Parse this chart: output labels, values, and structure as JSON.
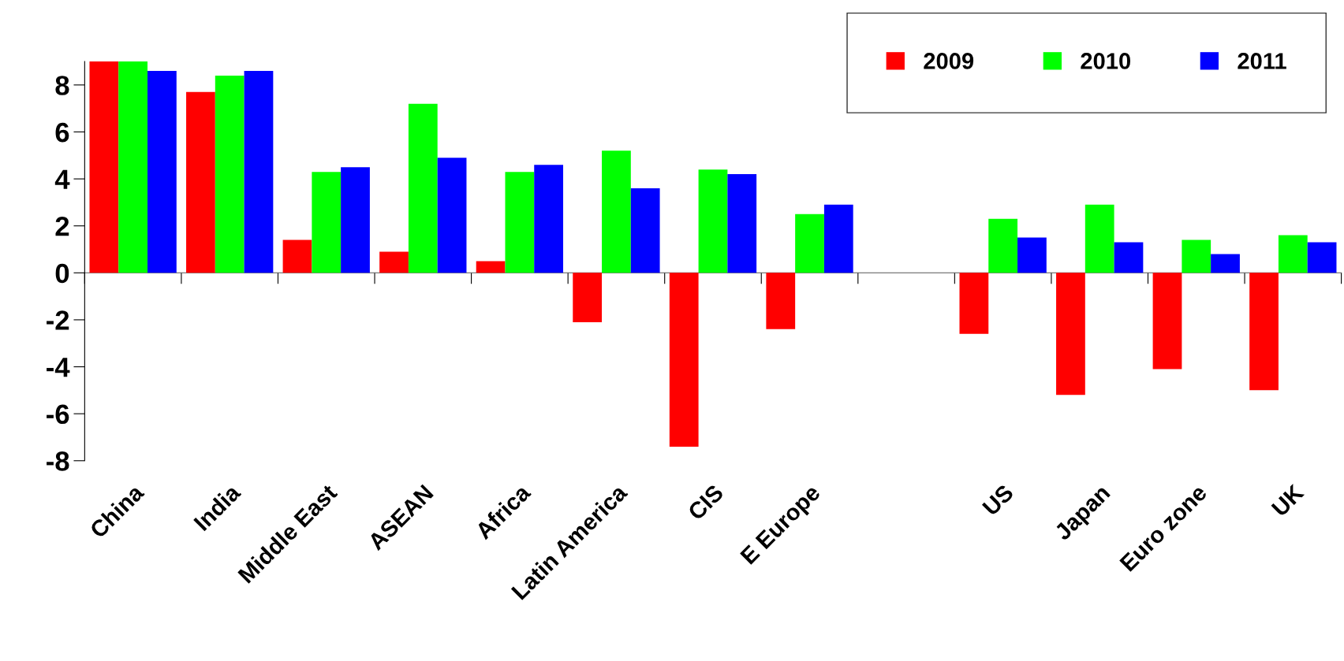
{
  "chart_data": {
    "type": "bar",
    "categories": [
      "China",
      "India",
      "Middle East",
      "ASEAN",
      "Africa",
      "Latin America",
      "CIS",
      "E Europe",
      null,
      "US",
      "Japan",
      "Euro zone",
      "UK"
    ],
    "series": [
      {
        "name": "2009",
        "color": "#ff0000",
        "values": [
          9.0,
          7.7,
          1.4,
          0.9,
          0.5,
          -2.1,
          -7.4,
          -2.4,
          null,
          -2.6,
          -5.2,
          -4.1,
          -5.0
        ]
      },
      {
        "name": "2010",
        "color": "#00ff00",
        "values": [
          9.0,
          8.4,
          4.3,
          7.2,
          4.3,
          5.2,
          4.4,
          2.5,
          null,
          2.3,
          2.9,
          1.4,
          1.6
        ]
      },
      {
        "name": "2011",
        "color": "#0000ff",
        "values": [
          8.6,
          8.6,
          4.5,
          4.9,
          4.6,
          3.6,
          4.2,
          2.9,
          null,
          1.5,
          1.3,
          0.8,
          1.3
        ]
      }
    ],
    "ylim": [
      -8,
      9
    ],
    "yticks": [
      -8,
      -6,
      -4,
      -2,
      0,
      2,
      4,
      6,
      8
    ],
    "legend": "top right"
  }
}
